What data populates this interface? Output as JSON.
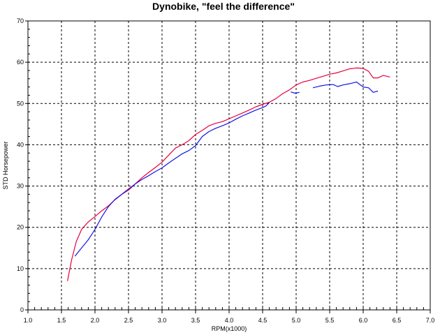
{
  "chart_data": {
    "type": "line",
    "title": "Dynobike, \"feel the difference\"",
    "xlabel": "RPM(x1000)",
    "ylabel": "STD Horsepower",
    "xlim": [
      1.0,
      7.0
    ],
    "ylim": [
      0,
      70
    ],
    "xticks": [
      "1.0",
      "1.5",
      "2.0",
      "2.5",
      "3.0",
      "3.5",
      "4.0",
      "4.5",
      "5.0",
      "5.5",
      "6.0",
      "6.5",
      "7.0"
    ],
    "yticks": [
      "0",
      "10",
      "20",
      "30",
      "40",
      "50",
      "60",
      "70"
    ],
    "grid": true,
    "series": [
      {
        "color": "#e8003c",
        "segments": [
          [
            [
              1.59,
              7.0
            ],
            [
              1.65,
              12.0
            ],
            [
              1.72,
              16.5
            ],
            [
              1.8,
              19.5
            ],
            [
              1.9,
              21.3
            ],
            [
              2.0,
              22.6
            ],
            [
              2.1,
              24.0
            ],
            [
              2.2,
              25.2
            ],
            [
              2.3,
              26.7
            ],
            [
              2.4,
              28.0
            ],
            [
              2.5,
              29.0
            ],
            [
              2.6,
              30.5
            ],
            [
              2.7,
              32.0
            ],
            [
              2.8,
              33.3
            ],
            [
              2.9,
              34.5
            ],
            [
              3.0,
              35.8
            ],
            [
              3.1,
              37.5
            ],
            [
              3.2,
              39.2
            ],
            [
              3.3,
              40.0
            ],
            [
              3.4,
              41.0
            ],
            [
              3.5,
              42.5
            ],
            [
              3.6,
              43.5
            ],
            [
              3.7,
              44.6
            ],
            [
              3.8,
              45.2
            ],
            [
              3.9,
              45.6
            ],
            [
              4.0,
              46.3
            ],
            [
              4.1,
              47.0
            ],
            [
              4.2,
              47.7
            ],
            [
              4.3,
              48.4
            ],
            [
              4.4,
              49.2
            ],
            [
              4.5,
              49.8
            ],
            [
              4.6,
              50.3
            ],
            [
              4.7,
              51.2
            ],
            [
              4.8,
              52.4
            ],
            [
              4.9,
              53.3
            ],
            [
              5.0,
              54.5
            ],
            [
              5.1,
              55.2
            ],
            [
              5.2,
              55.6
            ],
            [
              5.3,
              56.1
            ],
            [
              5.4,
              56.6
            ],
            [
              5.5,
              57.1
            ],
            [
              5.6,
              57.4
            ],
            [
              5.7,
              57.9
            ],
            [
              5.8,
              58.4
            ],
            [
              5.9,
              58.6
            ],
            [
              6.0,
              58.5
            ],
            [
              6.08,
              57.8
            ],
            [
              6.15,
              56.2
            ],
            [
              6.22,
              56.2
            ],
            [
              6.3,
              56.8
            ],
            [
              6.4,
              56.4
            ]
          ]
        ]
      },
      {
        "color": "#1414e6",
        "segments": [
          [
            [
              1.7,
              13.0
            ],
            [
              1.8,
              15.0
            ],
            [
              1.9,
              17.0
            ],
            [
              2.0,
              19.5
            ],
            [
              2.1,
              22.5
            ],
            [
              2.2,
              25.0
            ],
            [
              2.3,
              26.8
            ],
            [
              2.4,
              28.0
            ],
            [
              2.5,
              29.3
            ],
            [
              2.6,
              30.5
            ],
            [
              2.7,
              31.6
            ],
            [
              2.8,
              32.5
            ],
            [
              2.9,
              33.5
            ],
            [
              3.0,
              34.4
            ],
            [
              3.1,
              35.6
            ],
            [
              3.2,
              36.7
            ],
            [
              3.3,
              37.8
            ],
            [
              3.4,
              38.6
            ],
            [
              3.5,
              39.8
            ],
            [
              3.6,
              42.0
            ],
            [
              3.7,
              43.2
            ],
            [
              3.8,
              44.0
            ],
            [
              3.9,
              44.6
            ],
            [
              4.0,
              45.3
            ],
            [
              4.1,
              46.2
            ],
            [
              4.2,
              47.0
            ],
            [
              4.3,
              47.7
            ],
            [
              4.4,
              48.4
            ],
            [
              4.5,
              49.0
            ],
            [
              4.55,
              49.4
            ],
            [
              4.6,
              50.2
            ]
          ],
          [
            [
              4.92,
              52.8
            ],
            [
              4.98,
              52.5
            ],
            [
              5.05,
              52.7
            ]
          ],
          [
            [
              5.25,
              53.8
            ],
            [
              5.35,
              54.2
            ],
            [
              5.45,
              54.5
            ],
            [
              5.55,
              54.6
            ],
            [
              5.62,
              54.1
            ],
            [
              5.7,
              54.5
            ],
            [
              5.8,
              54.8
            ],
            [
              5.9,
              55.2
            ],
            [
              6.0,
              54.0
            ],
            [
              6.08,
              53.8
            ],
            [
              6.15,
              52.7
            ],
            [
              6.22,
              53.0
            ]
          ]
        ]
      }
    ]
  }
}
